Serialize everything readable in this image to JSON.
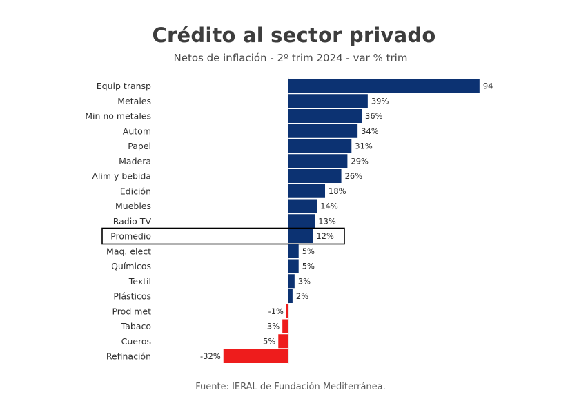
{
  "chart_data": {
    "type": "bar",
    "orientation": "horizontal",
    "title": "Crédito al sector privado",
    "subtitle": "Netos de inflación - 2º trim 2024 - var % trim",
    "source": "Fuente: IERAL de Fundación Mediterránea.",
    "categories": [
      "Equip transp",
      "Metales",
      "Min no metales",
      "Autom",
      "Papel",
      "Madera",
      "Alim y bebida",
      "Edición",
      "Muebles",
      "Radio TV",
      "Promedio",
      "Maq. elect",
      "Químicos",
      "Textil",
      "Plásticos",
      "Prod met",
      "Tabaco",
      "Cueros",
      "Refinación"
    ],
    "values": [
      94,
      39,
      36,
      34,
      31,
      29,
      26,
      18,
      14,
      13,
      12,
      5,
      5,
      3,
      2,
      -1,
      -3,
      -5,
      -32
    ],
    "labels": [
      "94",
      "39%",
      "36%",
      "34%",
      "31%",
      "29%",
      "26%",
      "18%",
      "14%",
      "13%",
      "12%",
      "5%",
      "5%",
      "3%",
      "2%",
      "-1%",
      "-3%",
      "-5%",
      "-32%"
    ],
    "highlight": "Promedio",
    "colors": {
      "positive": "#0c3272",
      "negative": "#ee1c1c",
      "highlight_border": "#000000"
    }
  }
}
